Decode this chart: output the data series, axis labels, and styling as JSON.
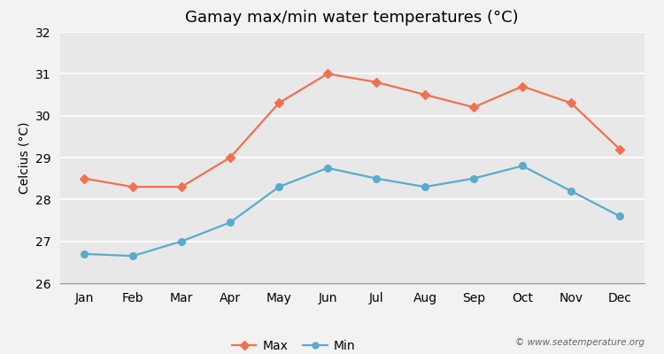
{
  "title": "Gamay max/min water temperatures (°C)",
  "ylabel": "Celcius (°C)",
  "months": [
    "Jan",
    "Feb",
    "Mar",
    "Apr",
    "May",
    "Jun",
    "Jul",
    "Aug",
    "Sep",
    "Oct",
    "Nov",
    "Dec"
  ],
  "max_temps": [
    28.5,
    28.3,
    28.3,
    29.0,
    30.3,
    31.0,
    30.8,
    30.5,
    30.2,
    30.7,
    30.3,
    29.2
  ],
  "min_temps": [
    26.7,
    26.65,
    27.0,
    27.45,
    28.3,
    28.75,
    28.5,
    28.3,
    28.5,
    28.8,
    28.2,
    27.6
  ],
  "max_color": "#f07050",
  "min_color": "#5aabcd",
  "background_color": "#f2f2f2",
  "plot_bg_color": "#e8e8e8",
  "ylim": [
    26,
    32
  ],
  "yticks": [
    26,
    27,
    28,
    29,
    30,
    31,
    32
  ],
  "watermark": "© www.seatemperature.org",
  "legend_labels": [
    "Max",
    "Min"
  ],
  "title_fontsize": 13,
  "label_fontsize": 10,
  "tick_fontsize": 10
}
